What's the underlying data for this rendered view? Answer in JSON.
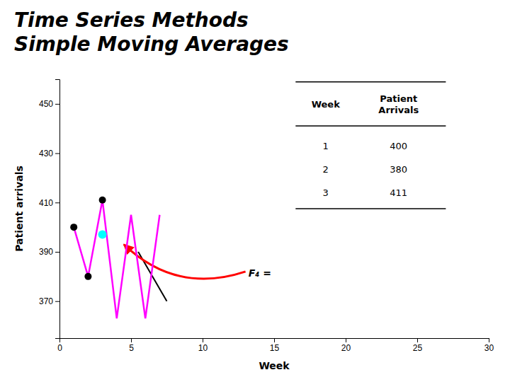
{
  "chart_data": {
    "type": "line",
    "title": "Time Series Methods\nSimple Moving Averages",
    "xlabel": "Week",
    "ylabel": "Patient arrivals",
    "xlim": [
      0,
      30
    ],
    "ylim": [
      355,
      460
    ],
    "xticks": [
      0,
      5,
      10,
      15,
      20,
      25,
      30
    ],
    "yticks": [
      370,
      390,
      410,
      430,
      450
    ],
    "series": [
      {
        "type": "line",
        "color": "magenta",
        "x": [
          1,
          2,
          3,
          4,
          5,
          6,
          7
        ],
        "values": [
          400,
          380,
          411,
          363,
          405,
          363,
          405
        ]
      },
      {
        "type": "scatter",
        "color": "black",
        "marker": "circle",
        "x": [
          1,
          2,
          3
        ],
        "values": [
          400,
          380,
          411
        ]
      },
      {
        "type": "scatter",
        "color": "cyan",
        "marker": "circle",
        "x": [
          3
        ],
        "values": [
          397
        ]
      }
    ],
    "annotations": [
      {
        "type": "line",
        "color": "black",
        "x": [
          5.5,
          7.5
        ],
        "y": [
          390,
          370
        ]
      },
      {
        "type": "arrow",
        "color": "red",
        "x": [
          13,
          4.5
        ],
        "y": [
          382,
          393
        ]
      },
      {
        "type": "text",
        "text": "F₄ =",
        "x": 13.2,
        "y": 381
      }
    ],
    "table": {
      "columns": [
        "Week",
        "Patient\nArrivals"
      ],
      "rows": [
        [
          1,
          400
        ],
        [
          2,
          380
        ],
        [
          3,
          411
        ]
      ]
    }
  }
}
